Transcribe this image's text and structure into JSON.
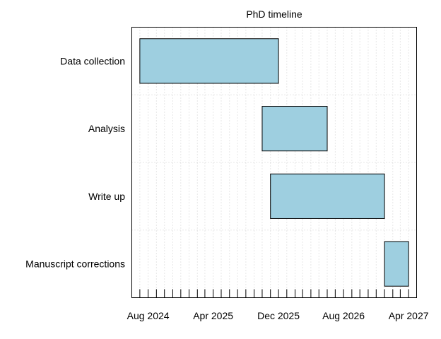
{
  "chart_data": {
    "type": "bar",
    "orientation": "horizontal",
    "title": "PhD timeline",
    "categories": [
      "Data collection",
      "Analysis",
      "Write up",
      "Manuscript corrections"
    ],
    "tasks": [
      {
        "name": "Data collection",
        "start": "2024-07-01",
        "end": "2025-12-01"
      },
      {
        "name": "Analysis",
        "start": "2025-10-01",
        "end": "2026-06-01"
      },
      {
        "name": "Write up",
        "start": "2025-11-01",
        "end": "2027-01-01"
      },
      {
        "name": "Manuscript corrections",
        "start": "2027-01-01",
        "end": "2027-04-01"
      }
    ],
    "x_ticks": [
      "Aug 2024",
      "Apr 2025",
      "Dec 2025",
      "Aug 2026",
      "Apr 2027"
    ],
    "xlim": [
      "2024-06-01",
      "2027-05-01"
    ],
    "grid": true,
    "bar_color": "#9ECFE0"
  }
}
